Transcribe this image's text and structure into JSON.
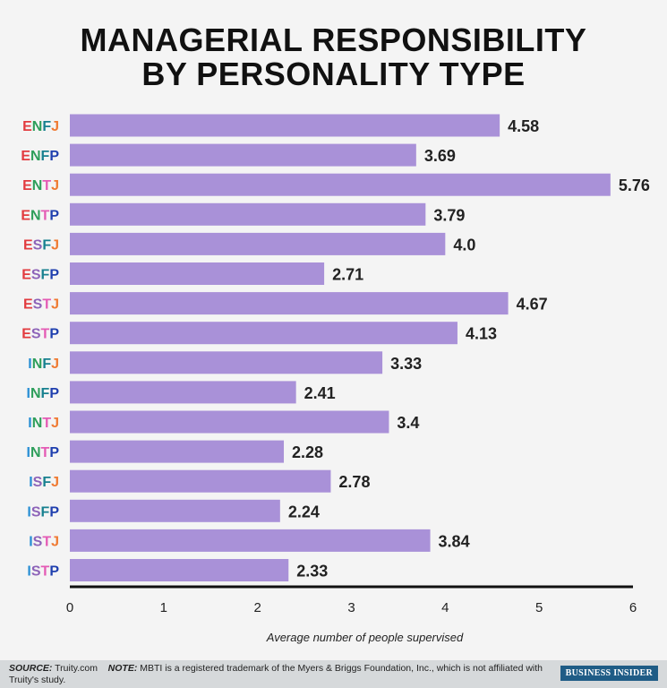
{
  "chart_data": {
    "type": "bar",
    "orientation": "horizontal",
    "title": "MANAGERIAL RESPONSIBILITY BY PERSONALITY TYPE",
    "title_lines": [
      "MANAGERIAL RESPONSIBILITY",
      "BY PERSONALITY TYPE"
    ],
    "categories": [
      "ENFJ",
      "ENFP",
      "ENTJ",
      "ENTP",
      "ESFJ",
      "ESFP",
      "ESTJ",
      "ESTP",
      "INFJ",
      "INFP",
      "INTJ",
      "INTP",
      "ISFJ",
      "ISFP",
      "ISTJ",
      "ISTP"
    ],
    "values": [
      4.58,
      3.69,
      5.76,
      3.79,
      4.0,
      2.71,
      4.67,
      4.13,
      3.33,
      2.41,
      3.4,
      2.28,
      2.78,
      2.24,
      3.84,
      2.33
    ],
    "data_labels": [
      "4.58",
      "3.69",
      "5.76",
      "3.79",
      "4.0",
      "2.71",
      "4.67",
      "4.13",
      "3.33",
      "2.41",
      "3.4",
      "2.28",
      "2.78",
      "2.24",
      "3.84",
      "2.33"
    ],
    "xlabel": "Average number of people supervised",
    "xlim": [
      0,
      6
    ],
    "xticks": [
      "0",
      "1",
      "2",
      "3",
      "4",
      "5",
      "6"
    ],
    "grid": false,
    "bar_color": "#a991d8",
    "letter_colors": {
      "E": "#e23b3f",
      "I": "#2a8fd4",
      "N": "#2e9e5b",
      "S": "#8d63b8",
      "F": "#17808f",
      "T": "#e45bb5",
      "J": "#ef7a32",
      "P": "#1f3fae"
    }
  },
  "footer": {
    "source_label": "SOURCE:",
    "source": "Truity.com",
    "note_label": "NOTE:",
    "note": "MBTI is a registered trademark of the Myers & Briggs Foundation, Inc., which is not affiliated with Truity's study.",
    "brand": "BUSINESS INSIDER"
  }
}
